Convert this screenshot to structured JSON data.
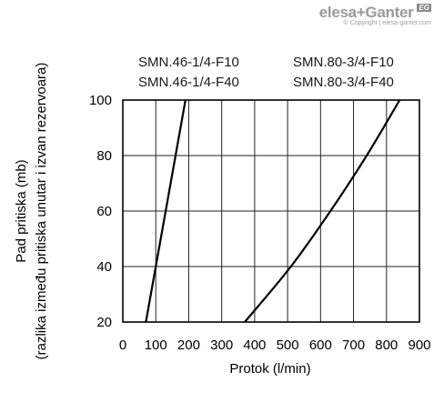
{
  "brand": {
    "name": "elesa+Ganter",
    "badge": "EG",
    "copyright": "© Copyright | elesa-ganter.com"
  },
  "chart_data": {
    "type": "line",
    "xlabel": "Protok (l/min)",
    "ylabel_line1": "Pad pritiska (mb)",
    "ylabel_line2": "(razlika između pritiska unutar i izvan rezervoara)",
    "xlim": [
      0,
      900
    ],
    "ylim": [
      20,
      100
    ],
    "xticks": [
      0,
      100,
      200,
      300,
      400,
      500,
      600,
      700,
      800,
      900
    ],
    "yticks": [
      20,
      40,
      60,
      80,
      100
    ],
    "grid": true,
    "series": [
      {
        "labels": [
          "SMN.46-1/4-F10",
          "SMN.46-1/4-F40"
        ],
        "x": [
          70,
          100,
          130,
          160,
          190
        ],
        "y": [
          20,
          40,
          60,
          80,
          100
        ],
        "color": "#000000"
      },
      {
        "labels": [
          "SMN.80-3/4-F10",
          "SMN.80-3/4-F40"
        ],
        "x": [
          370,
          510,
          630,
          740,
          840
        ],
        "y": [
          20,
          40,
          60,
          80,
          100
        ],
        "color": "#000000"
      }
    ]
  }
}
